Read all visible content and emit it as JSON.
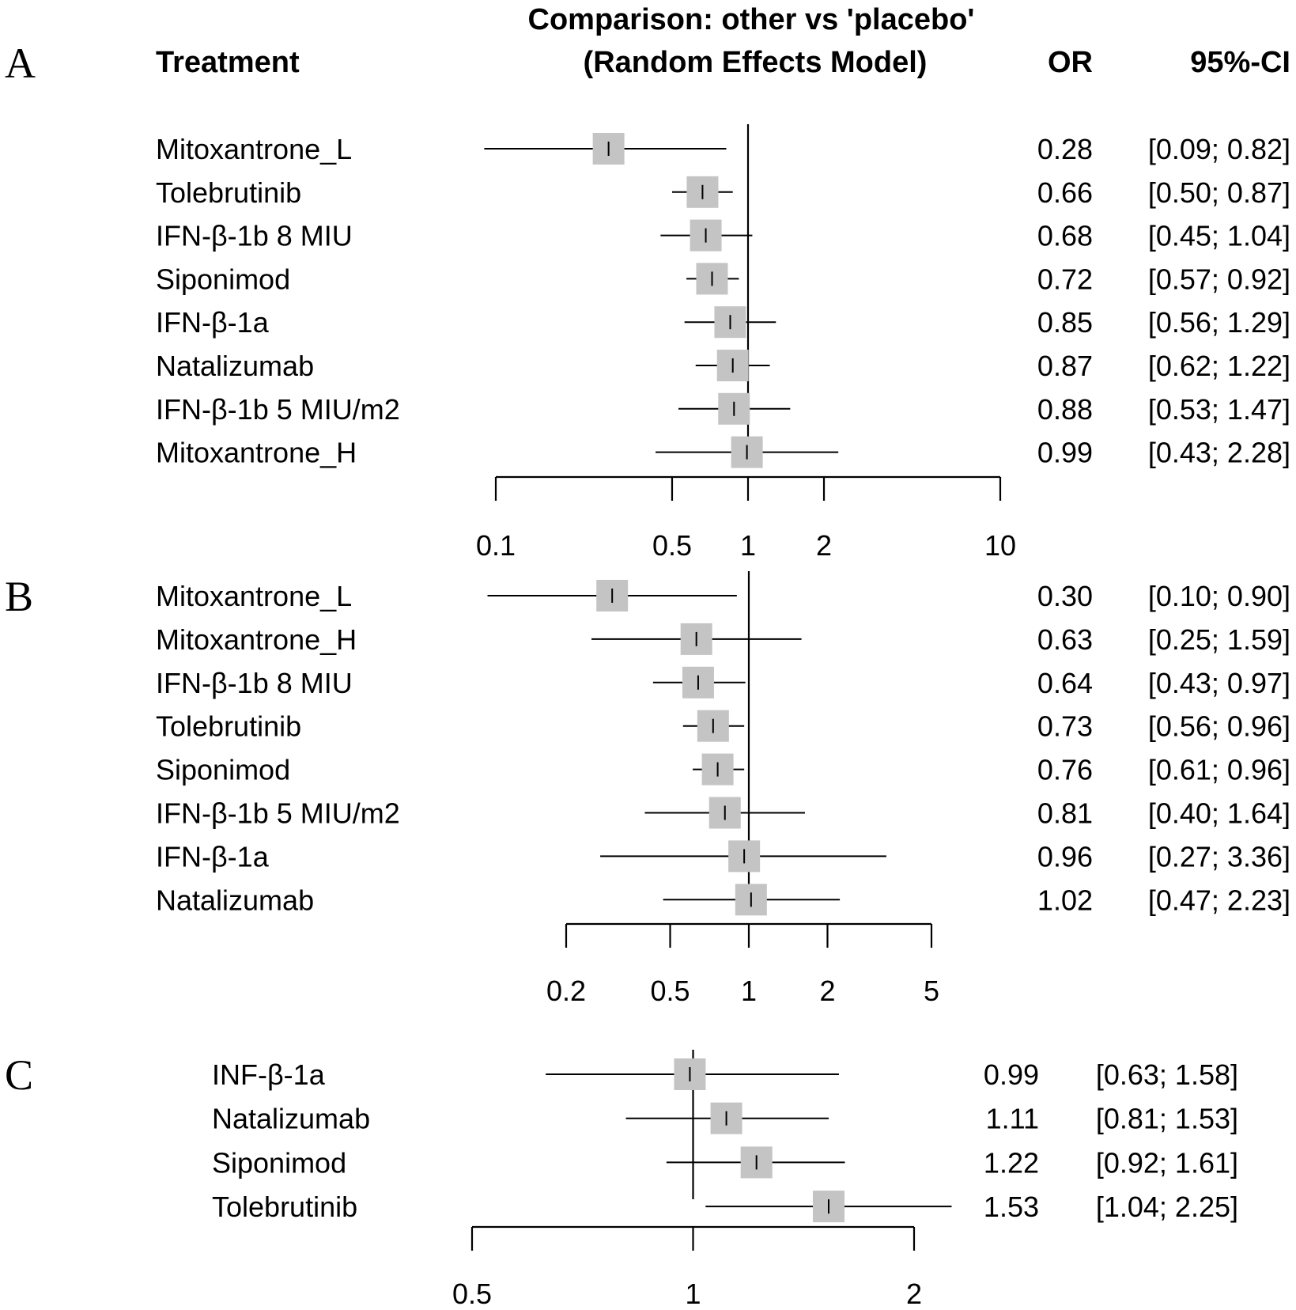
{
  "header": {
    "treatment_label": "Treatment",
    "comparison_line1": "Comparison: other vs 'placebo'",
    "comparison_line2": "(Random Effects Model)",
    "or_label": "OR",
    "ci_label": "95%-CI"
  },
  "chart_data": [
    {
      "type": "forest",
      "panel": "A",
      "x_scale": "log",
      "reference_line": 1,
      "xlim": [
        0.1,
        10
      ],
      "ticks": [
        0.1,
        0.5,
        1,
        2,
        10
      ],
      "tick_labels": [
        "0.1",
        "0.5",
        "1",
        "2",
        "10"
      ],
      "rows": [
        {
          "name": "Mitoxantrone_L",
          "or": 0.28,
          "lo": 0.09,
          "hi": 0.82,
          "or_text": "0.28",
          "ci_text": "[0.09; 0.82]"
        },
        {
          "name": "Tolebrutinib",
          "or": 0.66,
          "lo": 0.5,
          "hi": 0.87,
          "or_text": "0.66",
          "ci_text": "[0.50; 0.87]"
        },
        {
          "name": "IFN-β-1b 8 MIU",
          "or": 0.68,
          "lo": 0.45,
          "hi": 1.04,
          "or_text": "0.68",
          "ci_text": "[0.45; 1.04]"
        },
        {
          "name": "Siponimod",
          "or": 0.72,
          "lo": 0.57,
          "hi": 0.92,
          "or_text": "0.72",
          "ci_text": "[0.57; 0.92]"
        },
        {
          "name": "IFN-β-1a",
          "or": 0.85,
          "lo": 0.56,
          "hi": 1.29,
          "or_text": "0.85",
          "ci_text": "[0.56; 1.29]"
        },
        {
          "name": "Natalizumab",
          "or": 0.87,
          "lo": 0.62,
          "hi": 1.22,
          "or_text": "0.87",
          "ci_text": "[0.62; 1.22]"
        },
        {
          "name": "IFN-β-1b 5 MIU/m2",
          "or": 0.88,
          "lo": 0.53,
          "hi": 1.47,
          "or_text": "0.88",
          "ci_text": "[0.53; 1.47]"
        },
        {
          "name": "Mitoxantrone_H",
          "or": 0.99,
          "lo": 0.43,
          "hi": 2.28,
          "or_text": "0.99",
          "ci_text": "[0.43; 2.28]"
        }
      ]
    },
    {
      "type": "forest",
      "panel": "B",
      "x_scale": "log",
      "reference_line": 1,
      "xlim": [
        0.2,
        5
      ],
      "ticks": [
        0.2,
        0.5,
        1,
        2,
        5
      ],
      "tick_labels": [
        "0.2",
        "0.5",
        "1",
        "2",
        "5"
      ],
      "rows": [
        {
          "name": "Mitoxantrone_L",
          "or": 0.3,
          "lo": 0.1,
          "hi": 0.9,
          "or_text": "0.30",
          "ci_text": "[0.10; 0.90]"
        },
        {
          "name": "Mitoxantrone_H",
          "or": 0.63,
          "lo": 0.25,
          "hi": 1.59,
          "or_text": "0.63",
          "ci_text": "[0.25; 1.59]"
        },
        {
          "name": "IFN-β-1b  8 MIU",
          "or": 0.64,
          "lo": 0.43,
          "hi": 0.97,
          "or_text": "0.64",
          "ci_text": "[0.43; 0.97]"
        },
        {
          "name": "Tolebrutinib",
          "or": 0.73,
          "lo": 0.56,
          "hi": 0.96,
          "or_text": "0.73",
          "ci_text": "[0.56; 0.96]"
        },
        {
          "name": "Siponimod",
          "or": 0.76,
          "lo": 0.61,
          "hi": 0.96,
          "or_text": "0.76",
          "ci_text": "[0.61; 0.96]"
        },
        {
          "name": "IFN-β-1b 5 MIU/m2",
          "or": 0.81,
          "lo": 0.4,
          "hi": 1.64,
          "or_text": "0.81",
          "ci_text": "[0.40; 1.64]"
        },
        {
          "name": "IFN-β-1a",
          "or": 0.96,
          "lo": 0.27,
          "hi": 3.36,
          "or_text": "0.96",
          "ci_text": "[0.27; 3.36]"
        },
        {
          "name": "Natalizumab",
          "or": 1.02,
          "lo": 0.47,
          "hi": 2.23,
          "or_text": "1.02",
          "ci_text": "[0.47; 2.23]"
        }
      ]
    },
    {
      "type": "forest",
      "panel": "C",
      "x_scale": "log",
      "reference_line": 1,
      "xlim": [
        0.5,
        2
      ],
      "ticks": [
        0.5,
        1,
        2
      ],
      "tick_labels": [
        "0.5",
        "1",
        "2"
      ],
      "rows": [
        {
          "name": "INF-β-1a",
          "or": 0.99,
          "lo": 0.63,
          "hi": 1.58,
          "or_text": "0.99",
          "ci_text": "[0.63; 1.58]"
        },
        {
          "name": "Natalizumab",
          "or": 1.11,
          "lo": 0.81,
          "hi": 1.53,
          "or_text": "1.11",
          "ci_text": "[0.81; 1.53]"
        },
        {
          "name": "Siponimod",
          "or": 1.22,
          "lo": 0.92,
          "hi": 1.61,
          "or_text": "1.22",
          "ci_text": "[0.92; 1.61]"
        },
        {
          "name": "Tolebrutinib",
          "or": 1.53,
          "lo": 1.04,
          "hi": 2.25,
          "or_text": "1.53",
          "ci_text": "[1.04; 2.25]"
        }
      ]
    }
  ],
  "colors": {
    "marker_fill": "#c4c4c4",
    "line": "#000000"
  }
}
